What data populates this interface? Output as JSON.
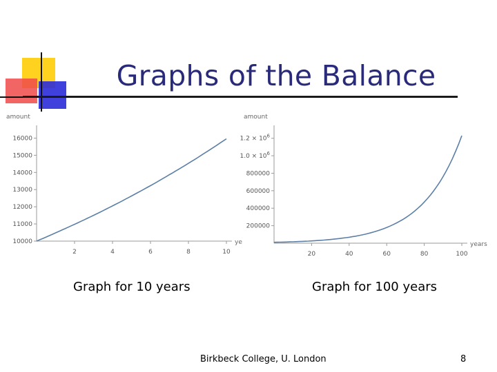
{
  "slide": {
    "title": "Graphs of the Balance",
    "footer": "Birkbeck College, U. London",
    "page_number": "8"
  },
  "colors": {
    "title": "#2a2a7a",
    "series": "#5b7fa6",
    "logo_yellow": "#ffd21f",
    "logo_red": "#f04a4a",
    "logo_blue": "#2b2bd9"
  },
  "chart_data": [
    {
      "type": "line",
      "caption": "Graph for 10 years",
      "xlabel": "ye",
      "ylabel": "amount",
      "xlim": [
        0,
        10
      ],
      "ylim": [
        10000,
        16500
      ],
      "x_ticks": [
        2,
        4,
        6,
        8,
        10
      ],
      "x_tick_labels": [
        "2",
        "4",
        "6",
        "8",
        "10"
      ],
      "y_ticks": [
        10000,
        11000,
        12000,
        13000,
        14000,
        15000,
        16000
      ],
      "y_tick_labels": [
        "10000",
        "11000",
        "12000",
        "13000",
        "14000",
        "15000",
        "16000"
      ],
      "grid": false,
      "series": [
        {
          "x": [
            0,
            1,
            2,
            3,
            4,
            5,
            6,
            7,
            8,
            9,
            10
          ],
          "values": [
            10000,
            10480,
            10980,
            11500,
            12050,
            12630,
            13230,
            13870,
            14530,
            15230,
            15960
          ]
        }
      ]
    },
    {
      "type": "line",
      "caption": "Graph for 100 years",
      "xlabel": "years",
      "ylabel": "amount",
      "xlim": [
        0,
        100
      ],
      "ylim": [
        0,
        1300000
      ],
      "x_ticks": [
        20,
        40,
        60,
        80,
        100
      ],
      "x_tick_labels": [
        "20",
        "40",
        "60",
        "80",
        "100"
      ],
      "y_ticks": [
        200000,
        400000,
        600000,
        800000,
        1000000,
        1200000
      ],
      "y_tick_labels": [
        "200000",
        "400000",
        "600000",
        "800000",
        "1.0 × 10^6",
        "1.2 × 10^6"
      ],
      "grid": false,
      "series": [
        {
          "x": [
            0,
            10,
            20,
            30,
            40,
            50,
            60,
            70,
            80,
            90,
            100
          ],
          "values": [
            10000,
            16000,
            26000,
            42000,
            68000,
            110000,
            180000,
            290000,
            470000,
            760000,
            1230000
          ]
        }
      ]
    }
  ]
}
